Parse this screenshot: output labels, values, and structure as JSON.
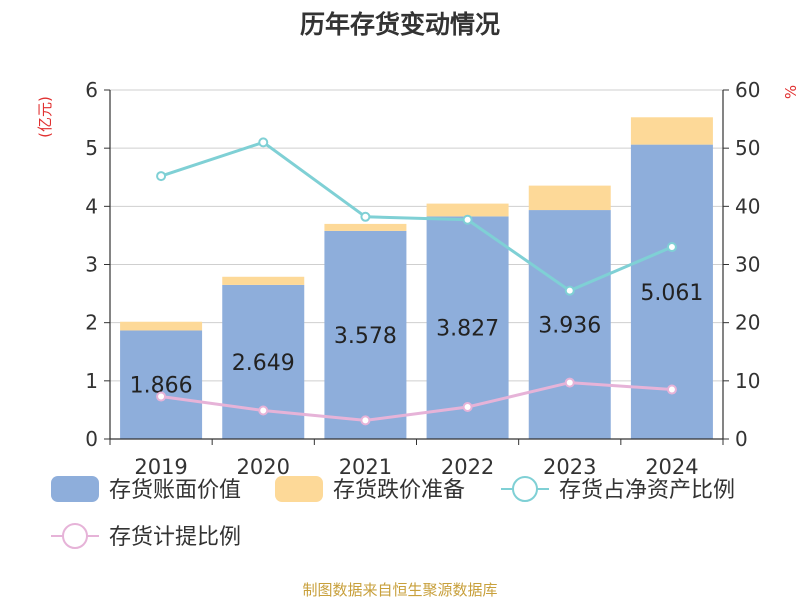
{
  "chart_data": {
    "type": "bar",
    "title": "历年存货变动情况",
    "ylabel_left": "(亿元)",
    "ylabel_right": "%",
    "categories": [
      "2019",
      "2020",
      "2021",
      "2022",
      "2023",
      "2024"
    ],
    "ylim_left": [
      0,
      6
    ],
    "ylim_right": [
      0,
      60
    ],
    "left_ticks": [
      "0",
      "1",
      "2",
      "3",
      "4",
      "5",
      "6"
    ],
    "right_ticks": [
      "0",
      "10",
      "20",
      "30",
      "40",
      "50",
      "60"
    ],
    "grid": true,
    "stacked": true,
    "legend_position": "bottom",
    "series": [
      {
        "name": "存货账面价值",
        "kind": "bar",
        "axis": "left",
        "color": "#8eaedb",
        "values": [
          1.866,
          2.649,
          3.578,
          3.827,
          3.936,
          5.061
        ],
        "labels": [
          "1.866",
          "2.649",
          "3.578",
          "3.827",
          "3.936",
          "5.061"
        ]
      },
      {
        "name": "存货跌价准备",
        "kind": "bar",
        "axis": "left",
        "color": "#fdd998",
        "values": [
          0.15,
          0.14,
          0.12,
          0.22,
          0.42,
          0.47
        ]
      },
      {
        "name": "存货占净资产比例",
        "kind": "line",
        "axis": "right",
        "color": "#7fd0d5",
        "values": [
          45.2,
          51.0,
          38.2,
          37.7,
          25.5,
          33.0
        ]
      },
      {
        "name": "存货计提比例",
        "kind": "line",
        "axis": "right",
        "color": "#e6b3d8",
        "values": [
          7.3,
          4.9,
          3.2,
          5.5,
          9.7,
          8.5
        ]
      }
    ]
  },
  "footer": {
    "source": "制图数据来自恒生聚源数据库"
  }
}
